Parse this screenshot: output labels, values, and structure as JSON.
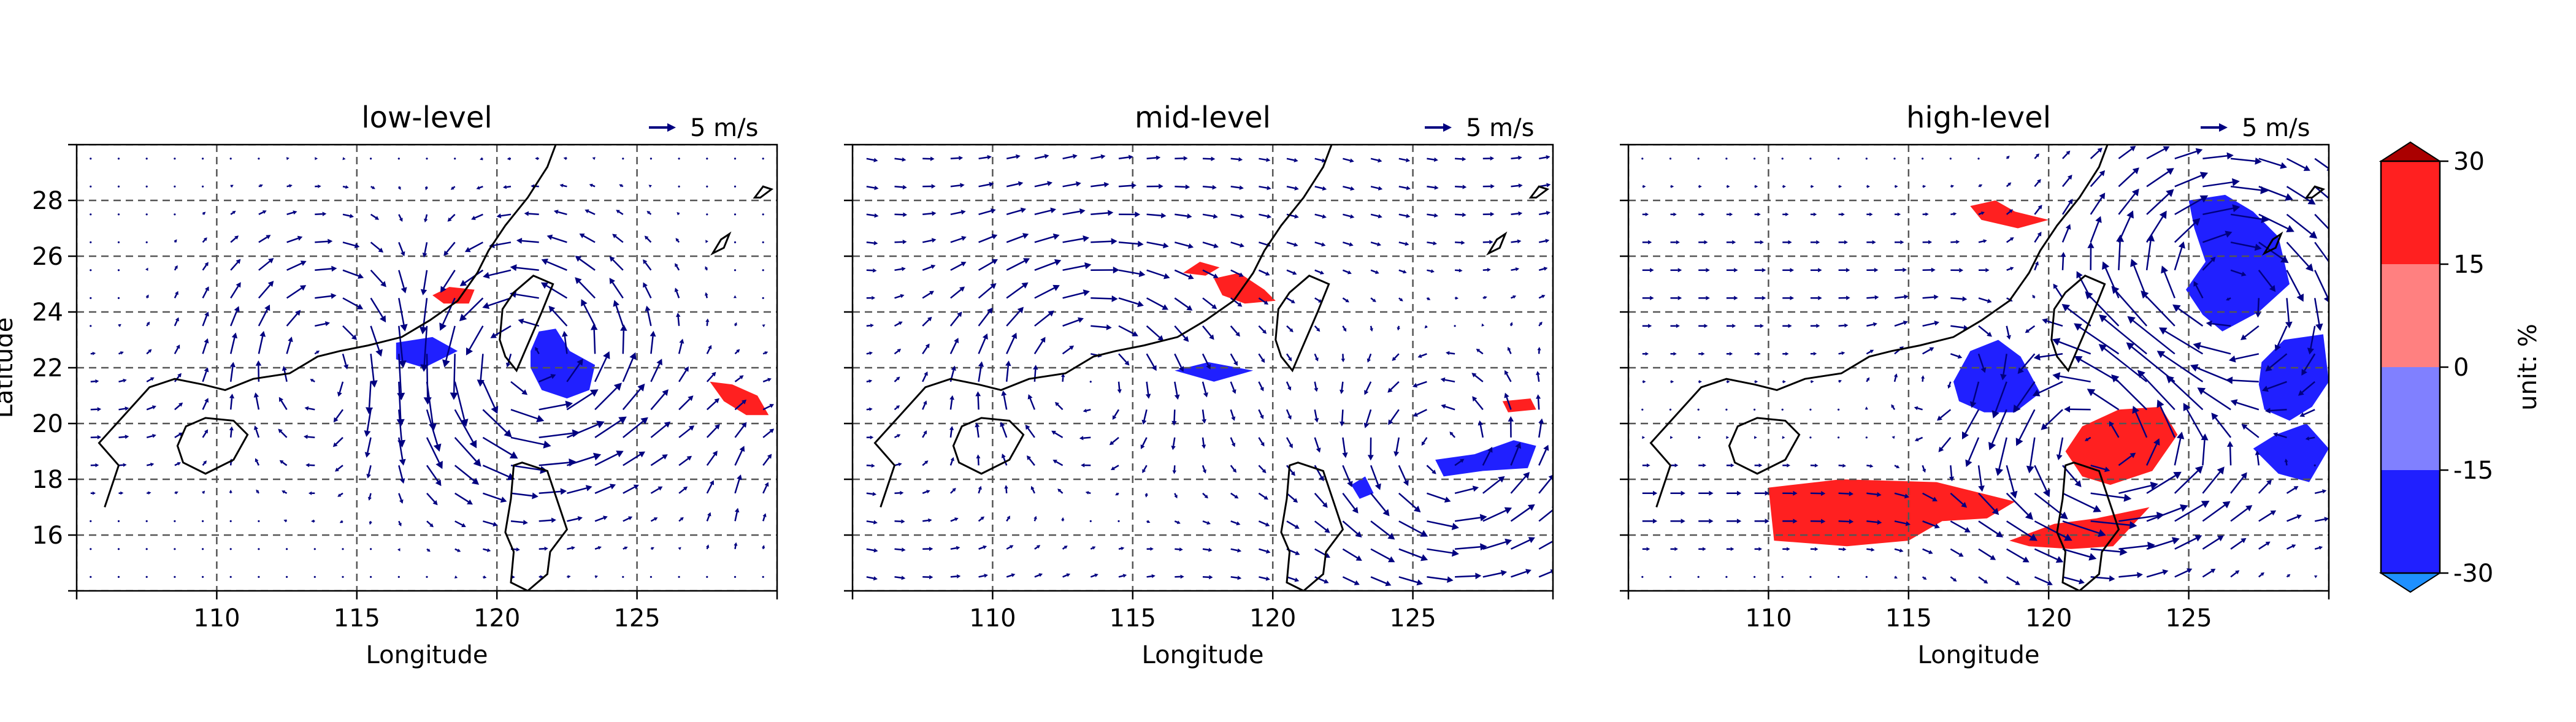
{
  "figure": {
    "panels": [
      {
        "title": "low-level",
        "xlabel": "Longitude",
        "ylabel": "Latitude",
        "key_label": "5 m/s",
        "xticks": [
          "110",
          "115",
          "120",
          "125"
        ],
        "yticks": [
          "28",
          "26",
          "24",
          "22",
          "20",
          "18",
          "16"
        ]
      },
      {
        "title": "mid-level",
        "xlabel": "Longitude",
        "ylabel": "",
        "key_label": "5 m/s",
        "xticks": [
          "110",
          "115",
          "120",
          "125"
        ],
        "yticks": []
      },
      {
        "title": "high-level",
        "xlabel": "Longitude",
        "ylabel": "",
        "key_label": "5 m/s",
        "xticks": [
          "110",
          "115",
          "120",
          "125"
        ],
        "yticks": []
      }
    ],
    "colorbar": {
      "label": "unit: %",
      "ticks": [
        "30",
        "15",
        "0",
        "-15",
        "-30"
      ],
      "levels": [
        {
          "range": [
            15,
            30
          ],
          "color": "#ff2020"
        },
        {
          "range": [
            0,
            15
          ],
          "color": "#ff8080"
        },
        {
          "range": [
            -15,
            0
          ],
          "color": "#8080ff"
        },
        {
          "range": [
            -30,
            -15
          ],
          "color": "#2020ff"
        }
      ],
      "extend_top_color": "#aa0000",
      "extend_bottom_color": "#1e90ff"
    }
  },
  "map_data": {
    "lon_range": [
      105,
      130
    ],
    "lat_range": [
      14,
      30
    ],
    "gridlines": true,
    "grid_lons": [
      105,
      110,
      115,
      120,
      125,
      130
    ],
    "grid_lats": [
      14,
      16,
      18,
      20,
      22,
      24,
      26,
      28,
      30
    ],
    "vector_color": "#000080",
    "coast_color": "#000000",
    "coastline": [
      [
        106,
        17
      ],
      [
        106.5,
        18.5
      ],
      [
        105.8,
        19.3
      ],
      [
        106.7,
        20.3
      ],
      [
        107.6,
        21.3
      ],
      [
        108.5,
        21.6
      ],
      [
        109.5,
        21.4
      ],
      [
        110.3,
        21.2
      ],
      [
        111.3,
        21.6
      ],
      [
        112.6,
        21.8
      ],
      [
        113.6,
        22.4
      ],
      [
        114.4,
        22.6
      ],
      [
        115.4,
        22.8
      ],
      [
        116.6,
        23.1
      ],
      [
        117.6,
        23.7
      ],
      [
        118.6,
        24.4
      ],
      [
        119.3,
        25.4
      ],
      [
        119.7,
        26.2
      ],
      [
        120.3,
        27.1
      ],
      [
        121.1,
        28.1
      ],
      [
        121.8,
        29.2
      ],
      [
        122.1,
        30
      ]
    ],
    "islands": [
      [
        [
          108.6,
          19.2
        ],
        [
          108.9,
          19.9
        ],
        [
          109.6,
          20.2
        ],
        [
          110.6,
          20.1
        ],
        [
          111.1,
          19.6
        ],
        [
          110.6,
          18.7
        ],
        [
          109.6,
          18.2
        ],
        [
          108.8,
          18.6
        ],
        [
          108.6,
          19.2
        ]
      ],
      [
        [
          120.1,
          23.0
        ],
        [
          120.2,
          24.1
        ],
        [
          120.6,
          24.7
        ],
        [
          121.3,
          25.3
        ],
        [
          122.0,
          25.0
        ],
        [
          121.6,
          24.0
        ],
        [
          121.0,
          22.6
        ],
        [
          120.7,
          21.9
        ],
        [
          120.3,
          22.4
        ],
        [
          120.1,
          23.0
        ]
      ],
      [
        [
          120.6,
          18.5
        ],
        [
          120.9,
          18.6
        ],
        [
          121.8,
          18.3
        ],
        [
          122.2,
          17.1
        ],
        [
          122.5,
          16.2
        ],
        [
          121.9,
          15.4
        ],
        [
          121.8,
          14.6
        ],
        [
          121.1,
          14.0
        ],
        [
          120.5,
          14.3
        ],
        [
          120.6,
          15.4
        ],
        [
          120.3,
          16.1
        ],
        [
          120.5,
          17.3
        ],
        [
          120.6,
          18.5
        ]
      ],
      [
        [
          127.7,
          26.1
        ],
        [
          128.0,
          26.6
        ],
        [
          128.3,
          26.8
        ],
        [
          128.1,
          26.3
        ],
        [
          127.7,
          26.1
        ]
      ],
      [
        [
          129.2,
          28.1
        ],
        [
          129.5,
          28.5
        ],
        [
          129.8,
          28.4
        ],
        [
          129.4,
          28.1
        ],
        [
          129.2,
          28.1
        ]
      ]
    ],
    "panels": [
      {
        "wind_pattern": "low-level",
        "contours": [
          {
            "color": "#ff2020",
            "points": [
              [
                117.7,
                24.6
              ],
              [
                118.3,
                24.9
              ],
              [
                119.2,
                24.8
              ],
              [
                119.0,
                24.3
              ],
              [
                118.1,
                24.3
              ],
              [
                117.7,
                24.6
              ]
            ]
          },
          {
            "color": "#2020ff",
            "points": [
              [
                116.4,
                22.9
              ],
              [
                117.7,
                23.1
              ],
              [
                118.6,
                22.6
              ],
              [
                117.4,
                22.0
              ],
              [
                116.4,
                22.3
              ],
              [
                116.4,
                22.9
              ]
            ]
          },
          {
            "color": "#2020ff",
            "points": [
              [
                121.2,
                22.6
              ],
              [
                121.5,
                23.3
              ],
              [
                122.1,
                23.4
              ],
              [
                122.6,
                22.6
              ],
              [
                123.5,
                22.1
              ],
              [
                123.3,
                21.2
              ],
              [
                122.5,
                20.9
              ],
              [
                121.6,
                21.2
              ],
              [
                121.2,
                22.0
              ],
              [
                121.2,
                22.6
              ]
            ]
          },
          {
            "color": "#ff2020",
            "points": [
              [
                127.6,
                21.5
              ],
              [
                128.4,
                21.4
              ],
              [
                129.3,
                21.0
              ],
              [
                129.7,
                20.3
              ],
              [
                128.9,
                20.3
              ],
              [
                128.1,
                20.8
              ],
              [
                127.6,
                21.5
              ]
            ]
          }
        ]
      },
      {
        "wind_pattern": "mid-level",
        "contours": [
          {
            "color": "#ff2020",
            "points": [
              [
                116.8,
                25.4
              ],
              [
                117.4,
                25.8
              ],
              [
                118.1,
                25.6
              ],
              [
                117.6,
                25.3
              ],
              [
                116.8,
                25.4
              ]
            ]
          },
          {
            "color": "#ff2020",
            "points": [
              [
                117.9,
                25.2
              ],
              [
                118.8,
                25.4
              ],
              [
                119.7,
                24.8
              ],
              [
                120.1,
                24.4
              ],
              [
                119.0,
                24.3
              ],
              [
                118.2,
                24.6
              ],
              [
                117.9,
                25.2
              ]
            ]
          },
          {
            "color": "#2020ff",
            "points": [
              [
                116.5,
                21.9
              ],
              [
                117.7,
                22.2
              ],
              [
                119.3,
                21.9
              ],
              [
                117.9,
                21.5
              ],
              [
                116.5,
                21.9
              ]
            ]
          },
          {
            "color": "#2020ff",
            "points": [
              [
                125.8,
                18.7
              ],
              [
                127.2,
                18.9
              ],
              [
                128.6,
                19.4
              ],
              [
                129.4,
                19.2
              ],
              [
                129.1,
                18.4
              ],
              [
                127.5,
                18.3
              ],
              [
                126.1,
                18.1
              ],
              [
                125.8,
                18.7
              ]
            ]
          },
          {
            "color": "#2020ff",
            "points": [
              [
                122.8,
                17.8
              ],
              [
                123.3,
                18.1
              ],
              [
                123.6,
                17.5
              ],
              [
                123.1,
                17.3
              ],
              [
                122.8,
                17.8
              ]
            ]
          },
          {
            "color": "#ff2020",
            "points": [
              [
                128.2,
                20.8
              ],
              [
                129.2,
                20.9
              ],
              [
                129.4,
                20.5
              ],
              [
                128.4,
                20.4
              ],
              [
                128.2,
                20.8
              ]
            ]
          }
        ]
      },
      {
        "wind_pattern": "high-level",
        "contours": [
          {
            "color": "#ff2020",
            "points": [
              [
                117.2,
                27.8
              ],
              [
                118.1,
                28.0
              ],
              [
                118.8,
                27.6
              ],
              [
                120.0,
                27.3
              ],
              [
                118.9,
                27.0
              ],
              [
                117.6,
                27.3
              ],
              [
                117.2,
                27.8
              ]
            ]
          },
          {
            "color": "#2020ff",
            "points": [
              [
                125.0,
                28.0
              ],
              [
                126.3,
                28.2
              ],
              [
                127.3,
                27.6
              ],
              [
                128.2,
                26.7
              ],
              [
                128.6,
                25.0
              ],
              [
                127.5,
                24.0
              ],
              [
                126.2,
                23.3
              ],
              [
                125.5,
                23.9
              ],
              [
                124.9,
                24.8
              ],
              [
                125.6,
                25.8
              ],
              [
                125.2,
                27.0
              ],
              [
                125.0,
                28.0
              ]
            ]
          },
          {
            "color": "#2020ff",
            "points": [
              [
                116.6,
                21.5
              ],
              [
                117.2,
                22.6
              ],
              [
                118.2,
                23.0
              ],
              [
                119.0,
                22.4
              ],
              [
                119.7,
                21.1
              ],
              [
                118.8,
                20.4
              ],
              [
                117.7,
                20.4
              ],
              [
                116.8,
                20.8
              ],
              [
                116.6,
                21.5
              ]
            ]
          },
          {
            "color": "#2020ff",
            "points": [
              [
                127.6,
                22.2
              ],
              [
                128.4,
                23.0
              ],
              [
                129.8,
                23.2
              ],
              [
                130.0,
                21.5
              ],
              [
                129.4,
                20.6
              ],
              [
                128.6,
                20.1
              ],
              [
                127.7,
                20.5
              ],
              [
                127.5,
                21.4
              ],
              [
                127.6,
                22.2
              ]
            ]
          },
          {
            "color": "#2020ff",
            "points": [
              [
                127.3,
                19.1
              ],
              [
                128.1,
                19.6
              ],
              [
                129.2,
                20.0
              ],
              [
                130.0,
                19.1
              ],
              [
                129.3,
                17.9
              ],
              [
                128.2,
                18.2
              ],
              [
                127.3,
                19.1
              ]
            ]
          },
          {
            "color": "#ff2020",
            "points": [
              [
                110.0,
                17.7
              ],
              [
                112.6,
                18.0
              ],
              [
                116.0,
                17.9
              ],
              [
                118.8,
                17.2
              ],
              [
                117.8,
                16.6
              ],
              [
                116.2,
                16.5
              ],
              [
                115.0,
                15.8
              ],
              [
                112.8,
                15.6
              ],
              [
                110.2,
                15.8
              ],
              [
                110.0,
                17.7
              ]
            ]
          },
          {
            "color": "#ff2020",
            "points": [
              [
                120.6,
                19.0
              ],
              [
                121.2,
                19.9
              ],
              [
                122.5,
                20.5
              ],
              [
                124.0,
                20.6
              ],
              [
                124.6,
                19.6
              ],
              [
                123.7,
                18.3
              ],
              [
                122.2,
                17.8
              ],
              [
                121.2,
                18.1
              ],
              [
                120.6,
                19.0
              ]
            ]
          },
          {
            "color": "#ff2020",
            "points": [
              [
                118.6,
                15.8
              ],
              [
                120.2,
                16.4
              ],
              [
                121.7,
                16.6
              ],
              [
                123.6,
                17.0
              ],
              [
                122.3,
                15.6
              ],
              [
                120.8,
                15.5
              ],
              [
                119.3,
                15.6
              ],
              [
                118.6,
                15.8
              ]
            ]
          }
        ]
      }
    ]
  }
}
